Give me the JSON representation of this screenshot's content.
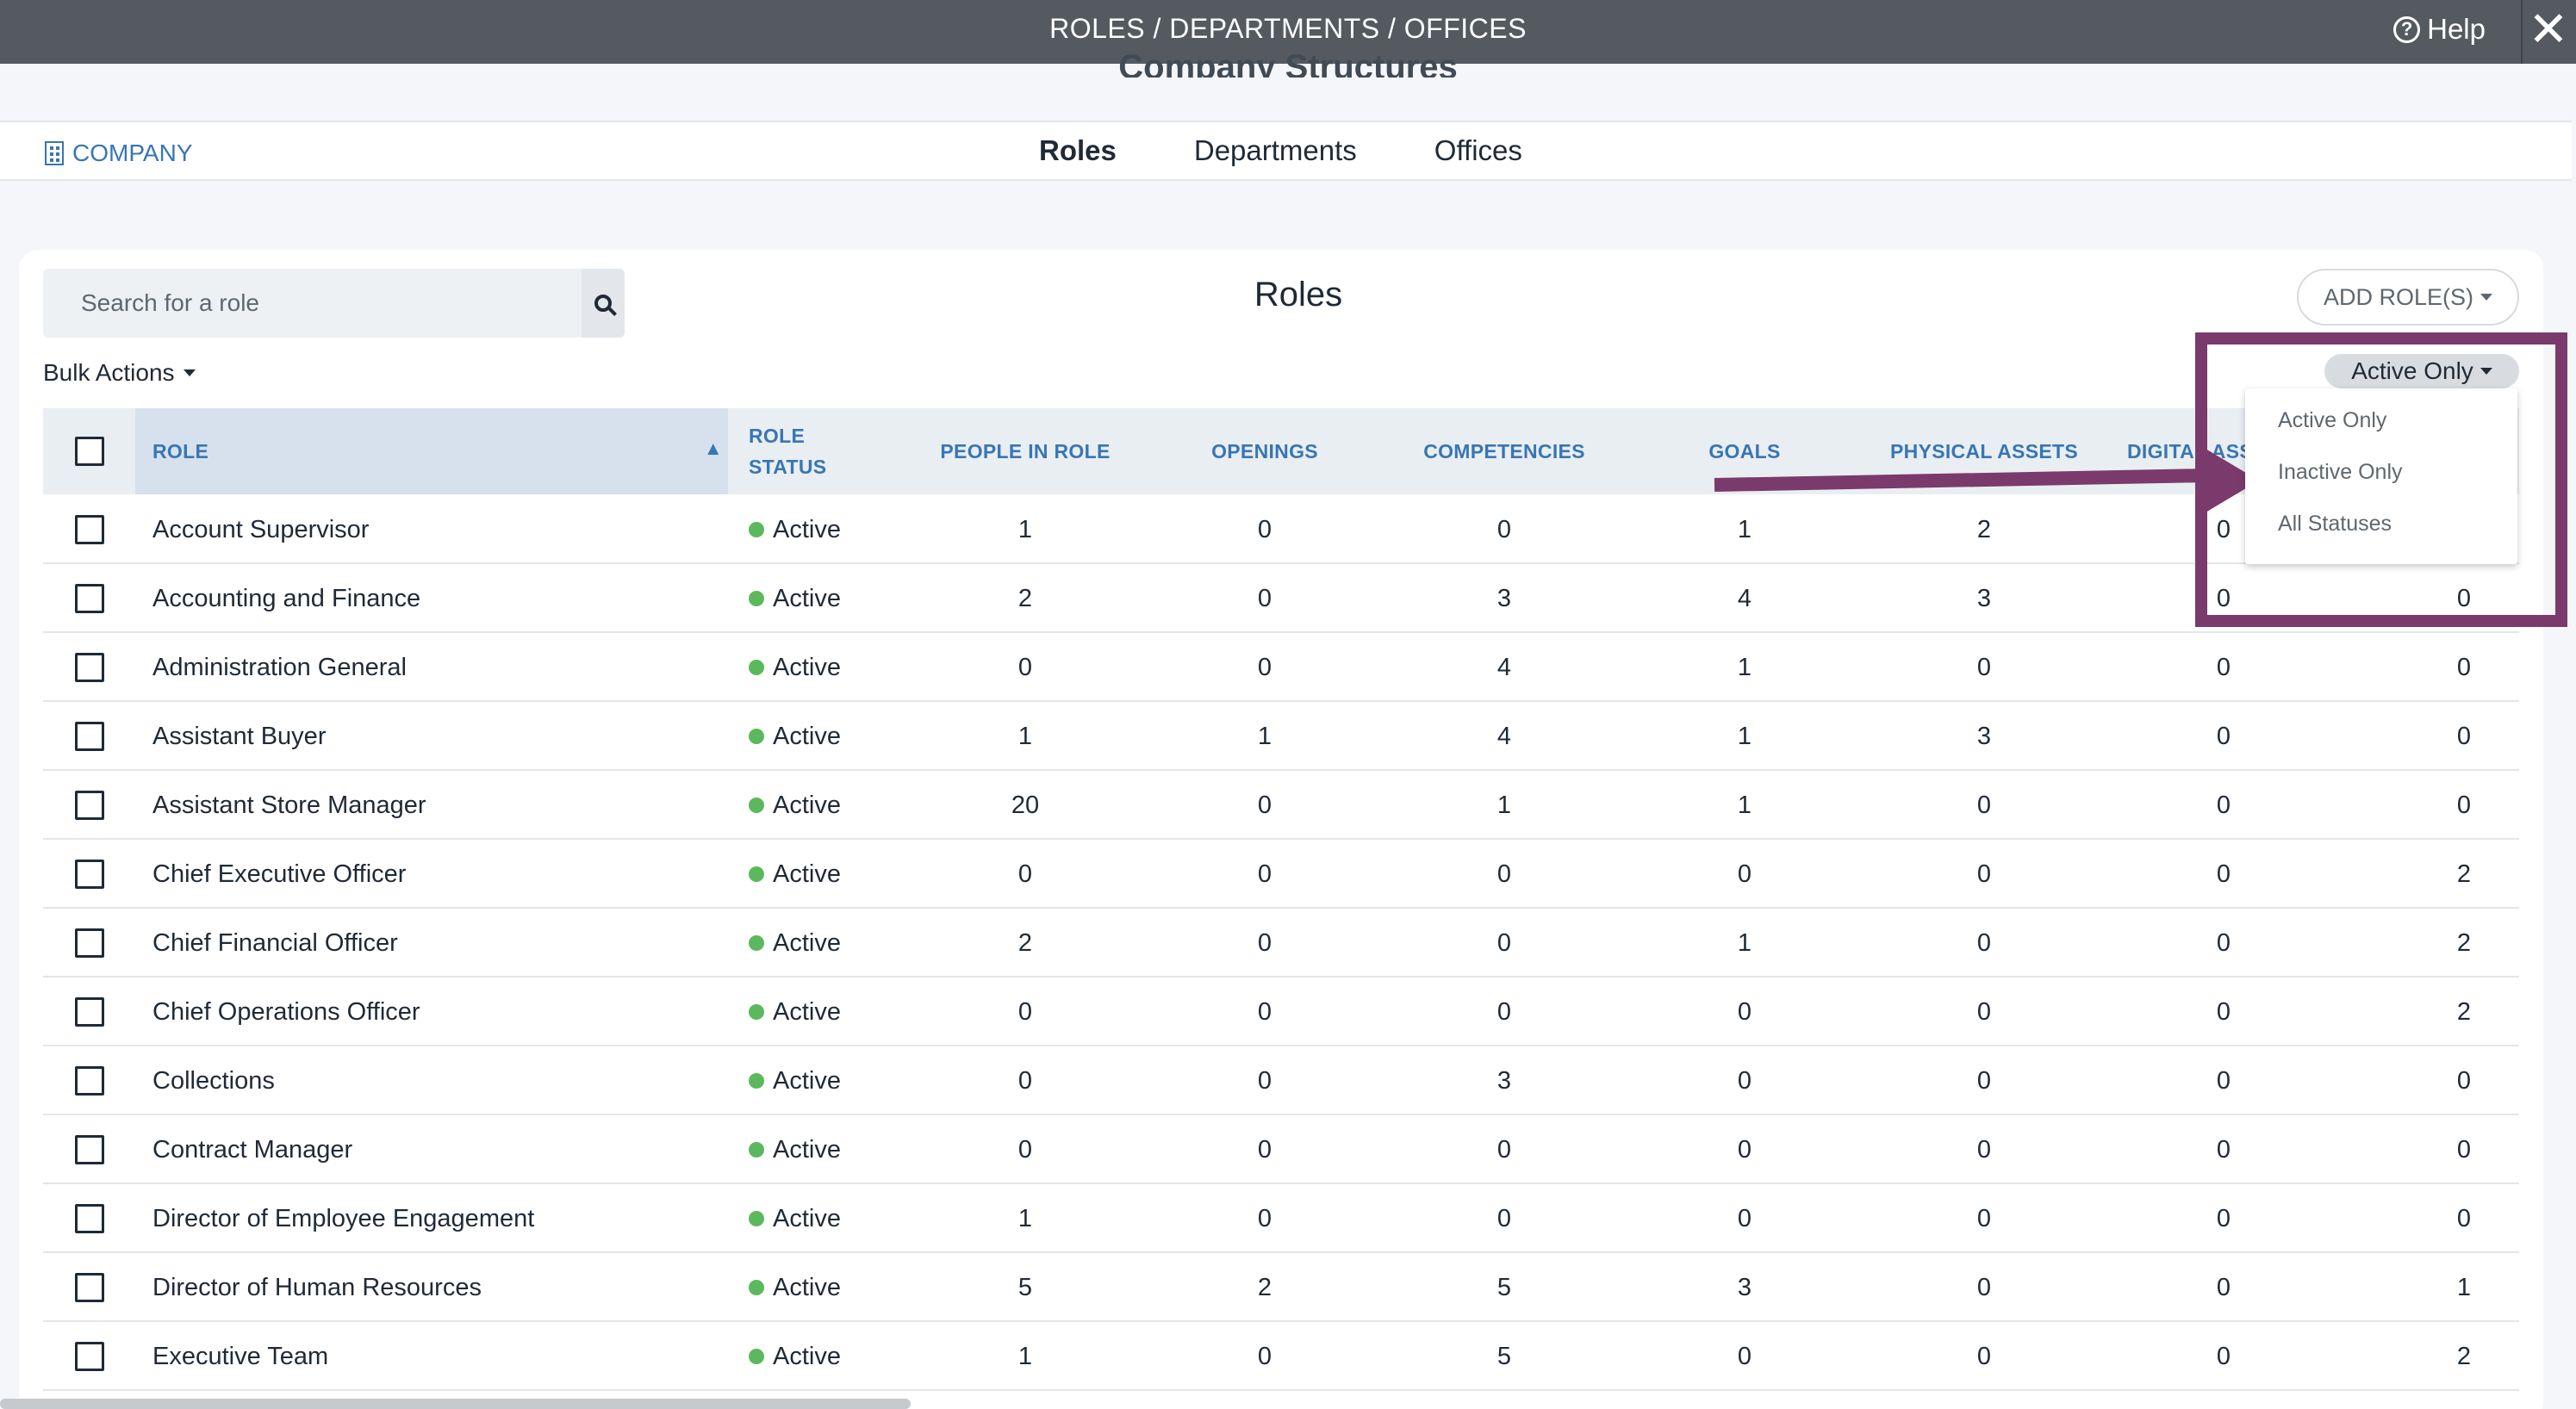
{
  "window": {
    "title": "ROLES / DEPARTMENTS / OFFICES",
    "help_label": "Help",
    "help_icon": "question-circle-icon",
    "close_icon": "close-icon"
  },
  "page": {
    "heading": "Company Structures"
  },
  "nav": {
    "company_label": "COMPANY",
    "company_icon": "building-icon",
    "tabs": [
      {
        "label": "Roles",
        "active": true
      },
      {
        "label": "Departments",
        "active": false
      },
      {
        "label": "Offices",
        "active": false
      }
    ]
  },
  "toolbar": {
    "search_placeholder": "Search for a role",
    "title": "Roles",
    "add_role_label": "ADD ROLE(S)",
    "bulk_actions_label": "Bulk Actions"
  },
  "status_filter": {
    "selected": "Active Only",
    "options": [
      "Active Only",
      "Inactive Only",
      "All Statuses"
    ]
  },
  "table": {
    "headers": {
      "role": "ROLE",
      "role_status_line1": "ROLE",
      "role_status_line2": "STATUS",
      "people": "PEOPLE IN ROLE",
      "openings": "OPENINGS",
      "competencies": "COMPETENCIES",
      "goals": "GOALS",
      "physical_assets": "PHYSICAL ASSETS",
      "digital_assets": "DIGITAL ASSETS"
    },
    "rows": [
      {
        "name": "Account Supervisor",
        "status": "Active",
        "people": "1",
        "openings": "0",
        "competencies": "0",
        "goals": "1",
        "physical": "2",
        "digital": "0",
        "last": ""
      },
      {
        "name": "Accounting and Finance",
        "status": "Active",
        "people": "2",
        "openings": "0",
        "competencies": "3",
        "goals": "4",
        "physical": "3",
        "digital": "0",
        "last": "0"
      },
      {
        "name": "Administration General",
        "status": "Active",
        "people": "0",
        "openings": "0",
        "competencies": "4",
        "goals": "1",
        "physical": "0",
        "digital": "0",
        "last": "0"
      },
      {
        "name": "Assistant Buyer",
        "status": "Active",
        "people": "1",
        "openings": "1",
        "competencies": "4",
        "goals": "1",
        "physical": "3",
        "digital": "0",
        "last": "0"
      },
      {
        "name": "Assistant Store Manager",
        "status": "Active",
        "people": "20",
        "openings": "0",
        "competencies": "1",
        "goals": "1",
        "physical": "0",
        "digital": "0",
        "last": "0"
      },
      {
        "name": "Chief Executive Officer",
        "status": "Active",
        "people": "0",
        "openings": "0",
        "competencies": "0",
        "goals": "0",
        "physical": "0",
        "digital": "0",
        "last": "2"
      },
      {
        "name": "Chief Financial Officer",
        "status": "Active",
        "people": "2",
        "openings": "0",
        "competencies": "0",
        "goals": "1",
        "physical": "0",
        "digital": "0",
        "last": "2"
      },
      {
        "name": "Chief Operations Officer",
        "status": "Active",
        "people": "0",
        "openings": "0",
        "competencies": "0",
        "goals": "0",
        "physical": "0",
        "digital": "0",
        "last": "2"
      },
      {
        "name": "Collections",
        "status": "Active",
        "people": "0",
        "openings": "0",
        "competencies": "3",
        "goals": "0",
        "physical": "0",
        "digital": "0",
        "last": "0"
      },
      {
        "name": "Contract Manager",
        "status": "Active",
        "people": "0",
        "openings": "0",
        "competencies": "0",
        "goals": "0",
        "physical": "0",
        "digital": "0",
        "last": "0"
      },
      {
        "name": "Director of Employee Engagement",
        "status": "Active",
        "people": "1",
        "openings": "0",
        "competencies": "0",
        "goals": "0",
        "physical": "0",
        "digital": "0",
        "last": "0"
      },
      {
        "name": "Director of Human Resources",
        "status": "Active",
        "people": "5",
        "openings": "2",
        "competencies": "5",
        "goals": "3",
        "physical": "0",
        "digital": "0",
        "last": "1"
      },
      {
        "name": "Executive Team",
        "status": "Active",
        "people": "1",
        "openings": "0",
        "competencies": "5",
        "goals": "0",
        "physical": "0",
        "digital": "0",
        "last": "2"
      }
    ]
  },
  "colors": {
    "accent": "#3876b3",
    "status_active": "#5cb85c",
    "annotation": "#7b3a6c"
  }
}
